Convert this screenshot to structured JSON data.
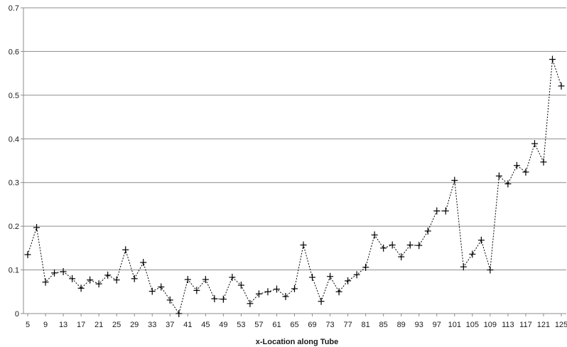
{
  "chart_data": {
    "type": "line",
    "title": "",
    "xlabel": "x-Location along Tube",
    "ylabel": "",
    "ylim": [
      0,
      0.7
    ],
    "y_ticks": [
      "0",
      "0.1",
      "0.2",
      "0.3",
      "0.4",
      "0.5",
      "0.6",
      "0.7"
    ],
    "x_ticks": [
      "5",
      "9",
      "13",
      "17",
      "21",
      "25",
      "29",
      "33",
      "37",
      "41",
      "45",
      "49",
      "53",
      "57",
      "61",
      "65",
      "69",
      "73",
      "77",
      "81",
      "85",
      "89",
      "93",
      "97",
      "101",
      "105",
      "109",
      "113",
      "117",
      "121",
      "125"
    ],
    "grid": "horizontal",
    "legend": "none",
    "line_color": "#000000",
    "line_style": "dashed",
    "marker": "plus",
    "series": [
      {
        "x": [
          5,
          7,
          9,
          11,
          13,
          15,
          17,
          19,
          21,
          23,
          25,
          27,
          29,
          31,
          33,
          35,
          37,
          39,
          41,
          43,
          45,
          47,
          49,
          51,
          53,
          55,
          57,
          59,
          61,
          63,
          65,
          67,
          69,
          71,
          73,
          75,
          77,
          79,
          81,
          83,
          85,
          87,
          89,
          91,
          93,
          95,
          97,
          99,
          101,
          103,
          105,
          107,
          109,
          111,
          113,
          115,
          117,
          119,
          121,
          123,
          125
        ],
        "values": [
          0.135,
          0.197,
          0.072,
          0.093,
          0.096,
          0.08,
          0.058,
          0.077,
          0.068,
          0.088,
          0.077,
          0.146,
          0.08,
          0.117,
          0.051,
          0.061,
          0.031,
          0.0,
          0.078,
          0.053,
          0.078,
          0.034,
          0.033,
          0.083,
          0.065,
          0.023,
          0.045,
          0.05,
          0.056,
          0.039,
          0.057,
          0.157,
          0.083,
          0.028,
          0.085,
          0.05,
          0.075,
          0.089,
          0.106,
          0.18,
          0.15,
          0.157,
          0.13,
          0.157,
          0.156,
          0.189,
          0.235,
          0.235,
          0.305,
          0.107,
          0.136,
          0.168,
          0.1,
          0.315,
          0.297,
          0.339,
          0.324,
          0.389,
          0.347,
          0.582,
          0.521
        ]
      }
    ]
  }
}
